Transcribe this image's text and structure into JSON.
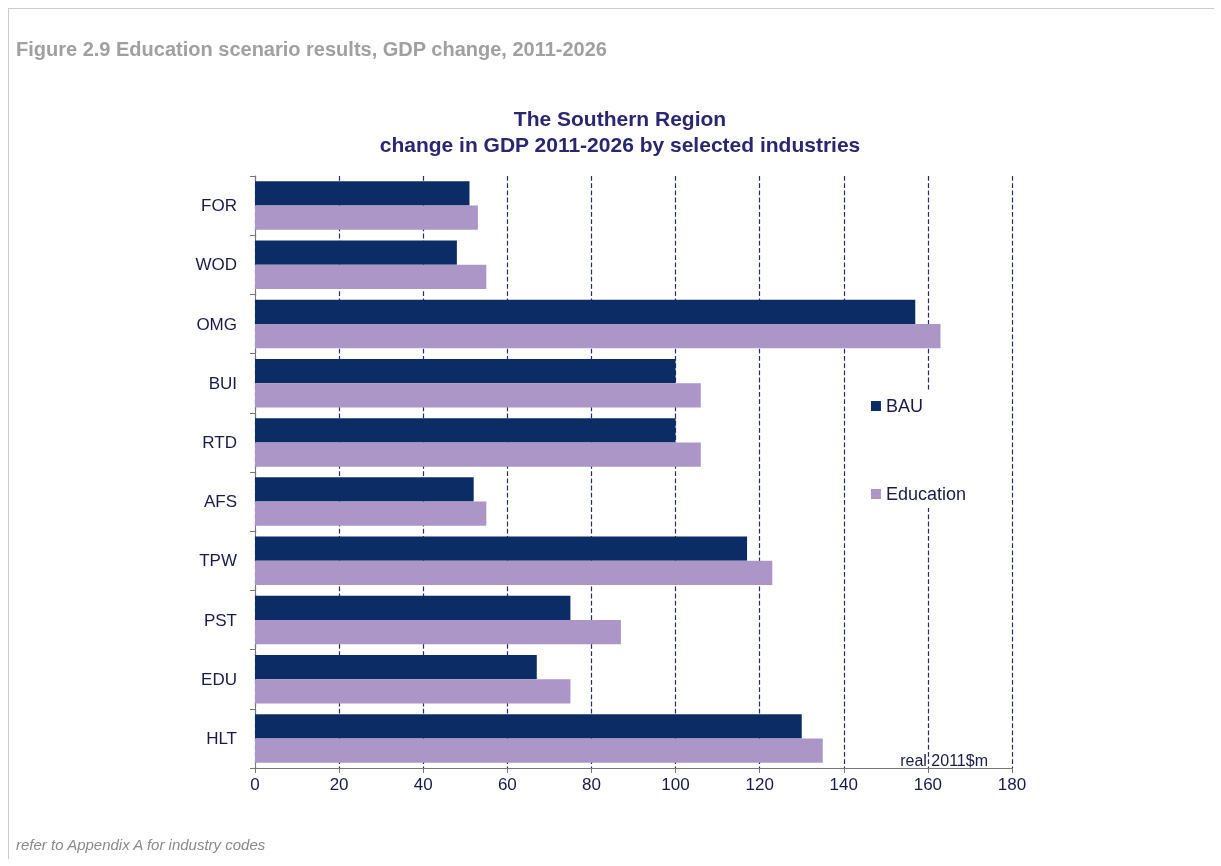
{
  "chart_data": {
    "type": "bar",
    "orientation": "horizontal",
    "title": "Figure 2.9 Education scenario results, GDP change, 2011-2026",
    "subtitle": "The Southern Region\nchange in GDP 2011-2026 by selected industries",
    "xlabel": "real 2011$m",
    "annotations": [
      "refer to Appendix A for industry codes"
    ],
    "categories": [
      "FOR",
      "WOD",
      "OMG",
      "BUI",
      "RTD",
      "AFS",
      "TPW",
      "PST",
      "EDU",
      "HLT"
    ],
    "series": [
      {
        "name": "BAU",
        "color": "#0b2c64",
        "values": [
          51,
          48,
          157,
          100,
          100,
          52,
          117,
          75,
          67,
          130
        ]
      },
      {
        "name": "Education",
        "color": "#ab96c7",
        "values": [
          53,
          55,
          163,
          106,
          106,
          55,
          123,
          87,
          75,
          135
        ]
      }
    ],
    "xlim": [
      0,
      180
    ],
    "xticks": [
      0,
      20,
      40,
      60,
      80,
      100,
      120,
      140,
      160,
      180
    ],
    "grid": "x",
    "line_style": "dashed",
    "legend": "right"
  }
}
